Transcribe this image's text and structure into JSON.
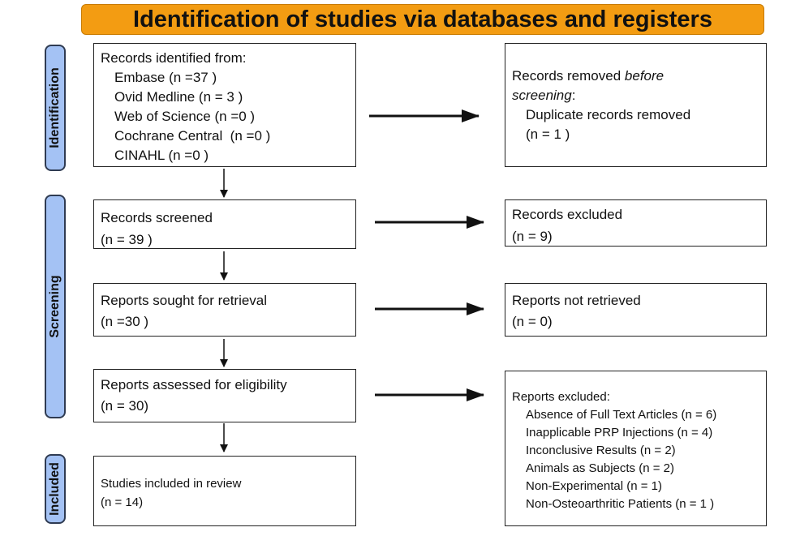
{
  "header": {
    "title": "Identification of studies via databases and registers"
  },
  "phases": [
    "Identification",
    "Screening",
    "Included"
  ],
  "identification": {
    "records": {
      "heading": "Records identified from:",
      "sources": [
        "Embase (n =37 )",
        "Ovid Medline (n = 3 )",
        "Web of Science (n =0 )",
        "Cochrane Central  (n =0 )",
        "CINAHL (n =0 )"
      ]
    },
    "removed": {
      "heading_start": "Records removed",
      "heading_emphasis": "before screening",
      "heading_end": ":",
      "items": [
        "Duplicate records removed",
        "(n = 1 )"
      ]
    }
  },
  "screening": {
    "screened": [
      "Records screened",
      "(n = 39 )"
    ],
    "excluded": [
      "Records excluded",
      "(n = 9)"
    ],
    "sought": [
      "Reports sought for retrieval",
      "(n =30 )"
    ],
    "not_retrieved": [
      "Reports not retrieved",
      "(n = 0)"
    ],
    "assessed": [
      "Reports assessed for eligibility",
      "(n = 30)"
    ],
    "reports_excluded": {
      "heading": "Reports excluded:",
      "reasons": [
        "Absence of Full Text Articles (n = 6)",
        "Inapplicable PRP Injections (n = 4)",
        "Inconclusive Results (n = 2)",
        "Animals as Subjects (n = 2)",
        "Non-Experimental (n = 1)",
        "Non-Osteoarthritic Patients (n = 1 )"
      ]
    }
  },
  "included": {
    "studies": [
      "Studies included in review",
      "(n = 14)"
    ]
  }
}
